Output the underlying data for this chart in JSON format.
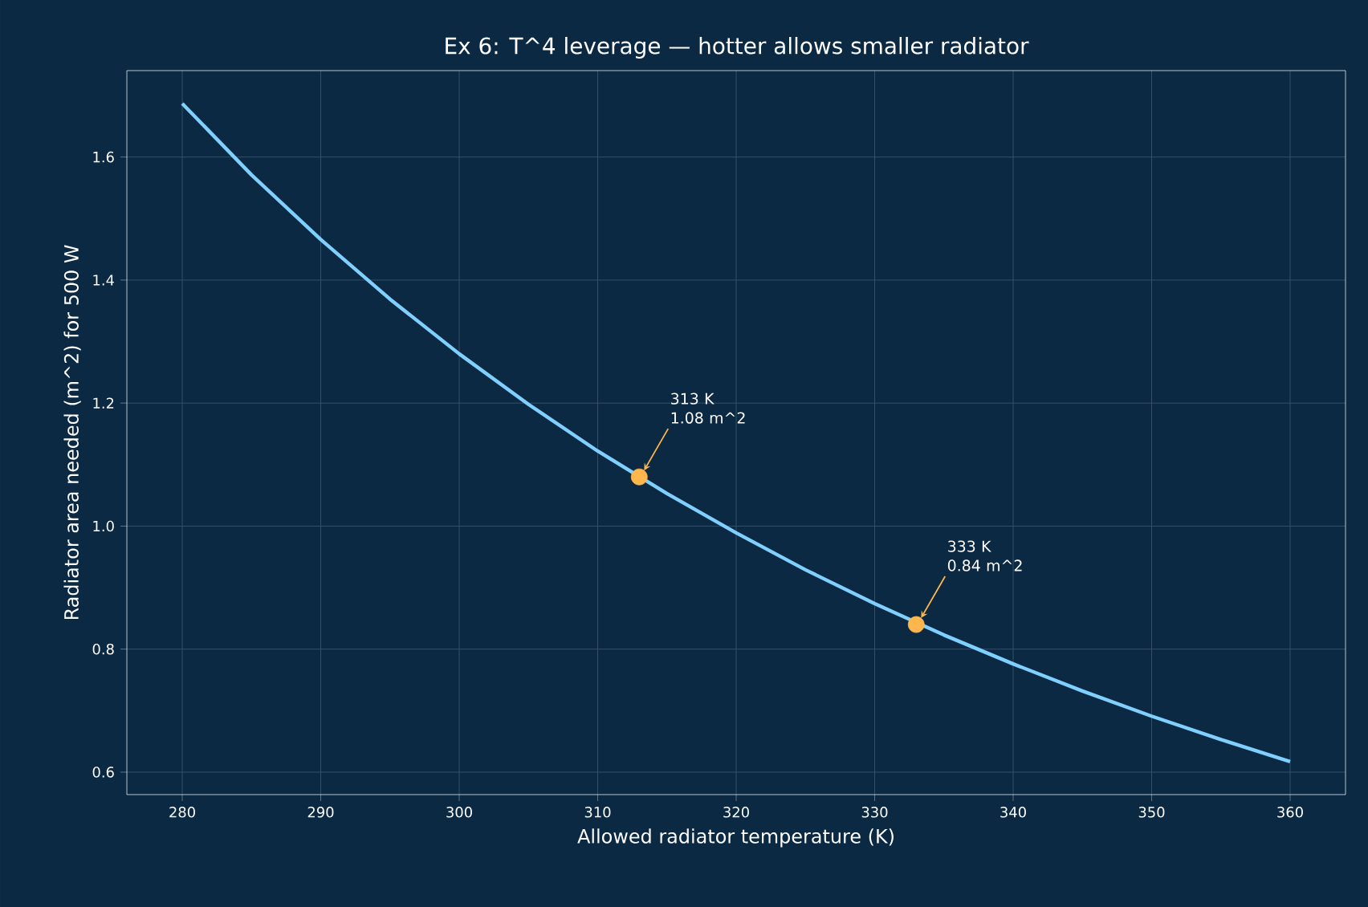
{
  "chart_data": {
    "type": "line",
    "title": "Ex 6: T^4 leverage — hotter allows smaller radiator",
    "xlabel": "Allowed radiator temperature (K)",
    "ylabel": "Radiator area needed (m^2)  for 500 W",
    "series": [
      {
        "color": "#7fd0ff",
        "marker": "none",
        "x": [
          280,
          285,
          290,
          295,
          300,
          305,
          310,
          315,
          320,
          325,
          330,
          335,
          340,
          345,
          350,
          355,
          360
        ],
        "values": [
          1.687,
          1.571,
          1.466,
          1.369,
          1.28,
          1.198,
          1.122,
          1.053,
          0.989,
          0.929,
          0.874,
          0.823,
          0.776,
          0.732,
          0.691,
          0.653,
          0.617
        ]
      },
      {
        "type": "scatter",
        "color": "#ffb74d",
        "marker": "circle",
        "x": [
          313,
          333
        ],
        "values": [
          1.08,
          0.84
        ]
      }
    ],
    "annotations": [
      {
        "text": "313 K 1.08 m^2",
        "x": 313,
        "y": 1.08
      },
      {
        "text": "333 K 0.84 m^2",
        "x": 333,
        "y": 0.84
      }
    ],
    "xlim": [
      276,
      364
    ],
    "ylim": [
      0.5635,
      1.7405
    ],
    "xticks": [
      280,
      290,
      300,
      310,
      320,
      330,
      340,
      350,
      360
    ],
    "yticks": [
      0.6,
      0.8,
      {
        "value": 1.0,
        "label": "1.0"
      },
      1.2,
      1.4,
      1.6
    ],
    "grid": true
  }
}
